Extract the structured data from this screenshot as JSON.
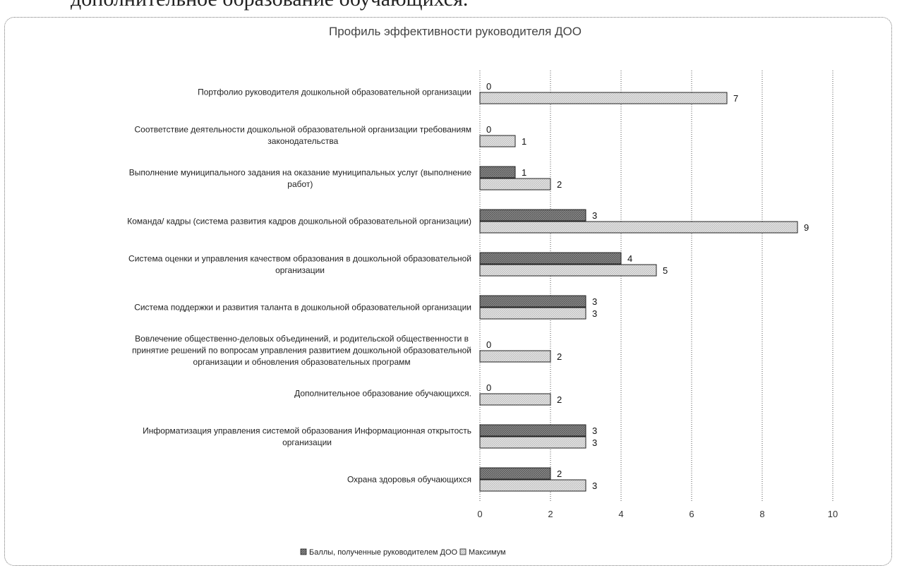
{
  "page": {
    "top_text": "дополнительное образование обучающихся."
  },
  "chart_data": {
    "type": "bar",
    "orientation": "horizontal",
    "title": "Профиль эффективности руководителя ДОО",
    "xlabel": "",
    "ylabel": "",
    "xlim": [
      0,
      10
    ],
    "xticks": [
      "0",
      "2",
      "4",
      "6",
      "8",
      "10"
    ],
    "grid": "vertical",
    "legend_position": "bottom",
    "categories": [
      [
        "Портфолио руководителя дошкольной образовательной организации"
      ],
      [
        "Соответствие деятельности дошкольной образовательной организации требованиям",
        "законодательства"
      ],
      [
        "Выполнение муниципального задания на оказание муниципальных услуг (выполнение",
        "работ)"
      ],
      [
        "Команда/ кадры (система развития кадров дошкольной образовательной организации)"
      ],
      [
        "Система оценки и управления качеством образования в дошкольной образовательной",
        "организации"
      ],
      [
        "Система поддержки и развития таланта в дошкольной образовательной организации"
      ],
      [
        "Вовлечение общественно-деловых объединений, и родительской общественности в",
        "принятие решений по вопросам управления развитием дошкольной образовательной",
        "организации и обновления образовательных программ"
      ],
      [
        "Дополнительное образование обучающихся."
      ],
      [
        "Информатизация управления системой образования Информационная открытость",
        "организации"
      ],
      [
        "Охрана здоровья обучающихся"
      ]
    ],
    "series": [
      {
        "name": "Баллы, полученные руководителем ДОО",
        "color": "#7a7a7a",
        "values": [
          0,
          0,
          1,
          3,
          4,
          3,
          0,
          0,
          3,
          2
        ]
      },
      {
        "name": "Максимум",
        "color": "#d4d4d4",
        "values": [
          7,
          1,
          2,
          9,
          5,
          3,
          2,
          2,
          3,
          3
        ]
      }
    ]
  }
}
